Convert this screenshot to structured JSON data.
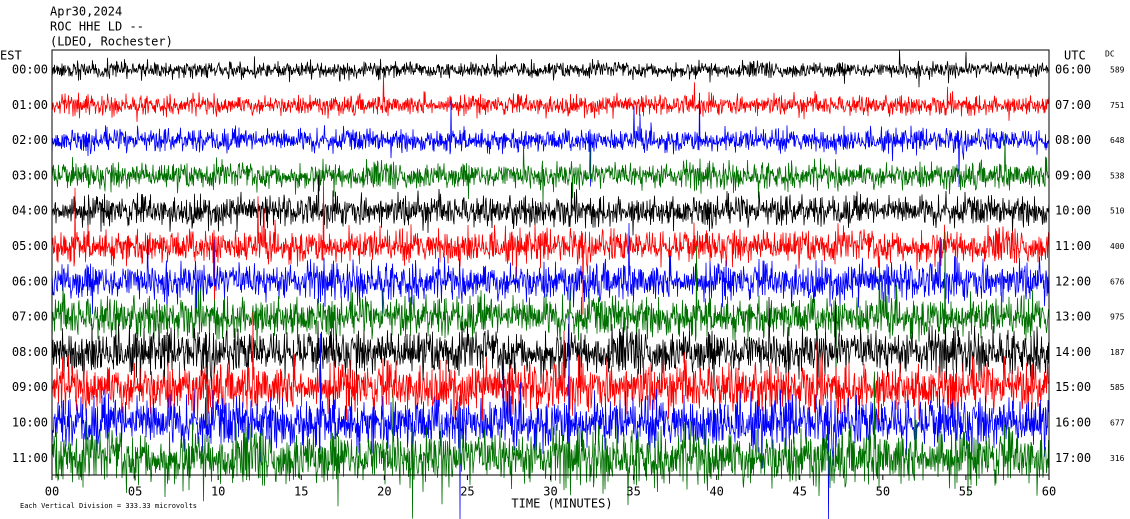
{
  "chart_data": {
    "type": "helicorder",
    "header": [
      "Apr30,2024",
      "ROC HHE LD --",
      "(LDEO, Rochester)"
    ],
    "left_axis_label": "EST",
    "right_axis_label": "UTC",
    "dc_label": "DC",
    "x_label": "TIME (MINUTES)",
    "footnote": "Each Vertical Division = 333.33 microvolts",
    "xlim": [
      0,
      60
    ],
    "xticks": [
      {
        "value": 0,
        "label": "00"
      },
      {
        "value": 5,
        "label": "05"
      },
      10,
      15,
      20,
      25,
      30,
      35,
      40,
      45,
      50,
      55,
      60
    ],
    "colors": [
      "#000000",
      "#ff0000",
      "#0000ff",
      "#007000"
    ],
    "rows": {
      "est": [
        "00:00",
        "01:00",
        "02:00",
        "03:00",
        "04:00",
        "05:00",
        "06:00",
        "07:00",
        "08:00",
        "09:00",
        "10:00",
        "11:00"
      ],
      "utc": [
        "06:00",
        "07:00",
        "08:00",
        "09:00",
        "10:00",
        "11:00",
        "12:00",
        "13:00",
        "14:00",
        "15:00",
        "16:00",
        "17:00"
      ],
      "dc": [
        589,
        751,
        648,
        538,
        510,
        400,
        676,
        975,
        187,
        585,
        677,
        316
      ]
    }
  }
}
